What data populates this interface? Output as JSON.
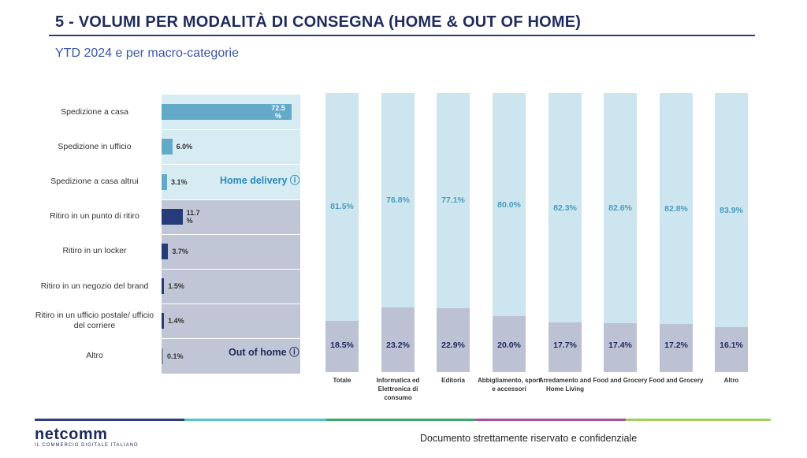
{
  "header": {
    "title": "5 - VOLUMI PER MODALITÀ DI CONSEGNA (HOME & OUT OF HOME)",
    "subtitle": "YTD 2024 e per macro-categorie"
  },
  "colors": {
    "home_bg": "#d6ebf2",
    "out_bg": "#c1c6d6",
    "home_bar": "#63a9c8",
    "out_bar": "#263c7a",
    "col_top": "#cde5ee",
    "col_bot": "#bcc2d3",
    "col_top_text": "#4a9cc0",
    "col_bot_text": "#1f2a5c"
  },
  "zones": {
    "home": "Home delivery ⓘ",
    "out": "Out of home ⓘ"
  },
  "footer": {
    "logo": "netcomm",
    "logo_sub": "IL COMMERCIO DIGITALE ITALIANO",
    "confidential": "Documento strettamente riservato e confidenziale"
  },
  "chart_data": [
    {
      "type": "bar",
      "orientation": "horizontal",
      "categories": [
        "Spedizione a casa",
        "Spedizione in ufficio",
        "Spedizione a casa altrui",
        "Ritiro in un punto di ritiro",
        "Ritiro in un locker",
        "Ritiro in un negozio del brand",
        "Ritiro in un ufficio postale/ ufficio del corriere",
        "Altro"
      ],
      "values": [
        72.5,
        6.0,
        3.1,
        11.7,
        3.7,
        1.5,
        1.4,
        0.1
      ],
      "labels": [
        "72.5 %",
        "6.0%",
        "3.1%",
        "11.7 %",
        "3.7%",
        "1.5%",
        "1.4%",
        "0.1%"
      ],
      "groups": [
        "home",
        "home",
        "home",
        "out",
        "out",
        "out",
        "out",
        "out"
      ]
    },
    {
      "type": "bar",
      "stacked": true,
      "percent": true,
      "categories": [
        "Totale",
        "Informatica ed Elettronica di consumo",
        "Editoria",
        "Abbigliamento, sport e accessori",
        "Arredamento and Home Living",
        "Food and Grocery",
        "Food and Grocery",
        "Altro"
      ],
      "series": [
        {
          "values": [
            81.5,
            76.8,
            77.1,
            80.0,
            82.3,
            82.6,
            82.8,
            83.9
          ],
          "labels": [
            "81.5%",
            "76.8%",
            "77.1%",
            "80.0%",
            "82.3%",
            "82.6%",
            "82.8%",
            "83.9%"
          ]
        },
        {
          "values": [
            18.5,
            23.2,
            22.9,
            20.0,
            17.7,
            17.4,
            17.2,
            16.1
          ],
          "labels": [
            "18.5%",
            "23.2%",
            "22.9%",
            "20.0%",
            "17.7%",
            "17.4%",
            "17.2%",
            "16.1%"
          ]
        }
      ],
      "ylim": [
        0,
        100
      ]
    }
  ]
}
